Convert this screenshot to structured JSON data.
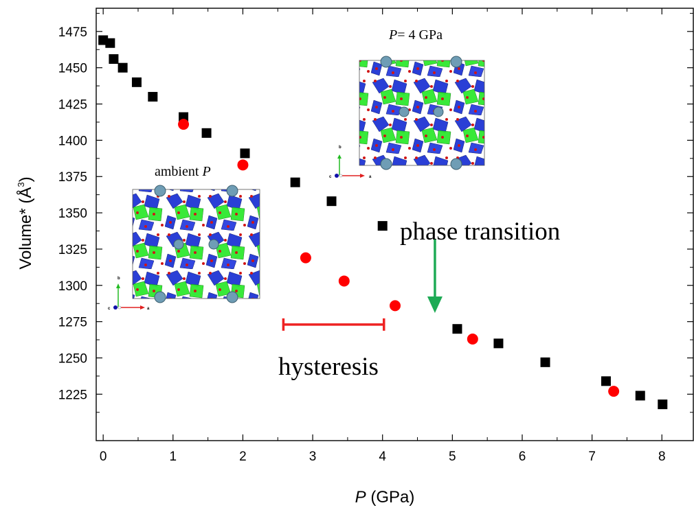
{
  "chart_data": {
    "type": "scatter",
    "xlabel": "P",
    "xlabel_unit": "(GPa)",
    "ylabel": "Volume* (Å",
    "ylabel_sup": "3",
    "ylabel_close": ")",
    "xlim": [
      -0.1,
      8.45
    ],
    "ylim": [
      1193,
      1491
    ],
    "xticks": [
      0,
      1,
      2,
      3,
      4,
      5,
      6,
      7,
      8
    ],
    "yticks": [
      1225,
      1250,
      1275,
      1300,
      1325,
      1350,
      1375,
      1400,
      1425,
      1450,
      1475
    ],
    "grid": false,
    "series": [
      {
        "marker": "square",
        "color": "#000000",
        "points": [
          [
            0.0,
            1469
          ],
          [
            0.1,
            1467
          ],
          [
            0.15,
            1456
          ],
          [
            0.28,
            1450
          ],
          [
            0.48,
            1440
          ],
          [
            0.71,
            1430
          ],
          [
            1.15,
            1416
          ],
          [
            1.48,
            1405
          ],
          [
            2.03,
            1391
          ],
          [
            2.75,
            1371
          ],
          [
            3.27,
            1358
          ],
          [
            4.0,
            1341
          ],
          [
            5.07,
            1270
          ],
          [
            5.66,
            1260
          ],
          [
            6.33,
            1247
          ],
          [
            7.2,
            1234
          ],
          [
            7.69,
            1224
          ],
          [
            8.01,
            1218
          ]
        ]
      },
      {
        "marker": "circle",
        "color": "#ff0000",
        "points": [
          [
            1.15,
            1411
          ],
          [
            2.0,
            1383
          ],
          [
            2.9,
            1319
          ],
          [
            3.45,
            1303
          ],
          [
            4.18,
            1286
          ],
          [
            5.29,
            1263
          ],
          [
            7.31,
            1227
          ]
        ]
      }
    ],
    "annotations": {
      "phase_transition": "phase transition",
      "hysteresis": "hysteresis",
      "hysteresis_range": [
        2.58,
        4.02
      ],
      "hysteresis_y": 1273,
      "arrow_x": 4.75,
      "arrow_from": 1332,
      "arrow_to": 1281,
      "arrow_color": "#1eaa55",
      "bar_color": "#ee2222",
      "inset_ambient": {
        "label": "ambient",
        "label_var": "P"
      },
      "inset_pressure": {
        "label_var": "P",
        "label_rest": "= 4 GPa"
      },
      "axis_triad": {
        "a": "a",
        "b": "b",
        "c": "c"
      }
    }
  }
}
